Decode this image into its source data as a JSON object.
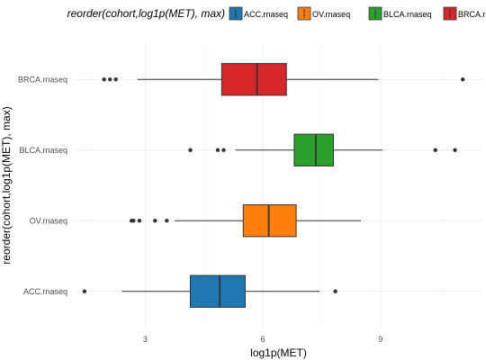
{
  "chart_data": {
    "type": "boxplot",
    "orientation": "horizontal",
    "title": "",
    "xlabel": "log1p(MET)",
    "ylabel": "reorder(cohort,log1p(MET), max)",
    "xlim": [
      1.2,
      11.6
    ],
    "x_ticks": [
      3,
      6,
      9
    ],
    "grid": true,
    "legend": {
      "title": "reorder(cohort,log1p(MET), max)",
      "placement": "top",
      "entries": [
        "ACC.rnaseq",
        "OV.rnaseq",
        "BLCA.rnaseq",
        "BRCA.rnaseq"
      ]
    },
    "categories": [
      "ACC.rnaseq",
      "OV.rnaseq",
      "BLCA.rnaseq",
      "BRCA.rnaseq"
    ],
    "series": [
      {
        "name": "ACC.rnaseq",
        "color": "#1f77b4",
        "whisker_low": 2.4,
        "q1": 4.15,
        "median": 4.9,
        "q3": 5.55,
        "whisker_high": 7.45,
        "outliers": [
          1.45,
          7.85
        ]
      },
      {
        "name": "OV.rnaseq",
        "color": "#ff7f0e",
        "whisker_low": 3.75,
        "q1": 5.5,
        "median": 6.15,
        "q3": 6.85,
        "whisker_high": 8.5,
        "outliers": [
          2.65,
          2.7,
          2.85,
          3.25,
          3.55
        ]
      },
      {
        "name": "BLCA.rnaseq",
        "color": "#2ca02c",
        "whisker_low": 5.3,
        "q1": 6.8,
        "median": 7.35,
        "q3": 7.8,
        "whisker_high": 9.05,
        "outliers": [
          4.15,
          4.85,
          5.0,
          10.4,
          10.9
        ]
      },
      {
        "name": "BRCA.rnaseq",
        "color": "#d62728",
        "whisker_low": 2.8,
        "q1": 4.95,
        "median": 5.85,
        "q3": 6.6,
        "whisker_high": 8.95,
        "outliers": [
          1.95,
          2.1,
          2.25,
          11.1
        ]
      }
    ]
  }
}
